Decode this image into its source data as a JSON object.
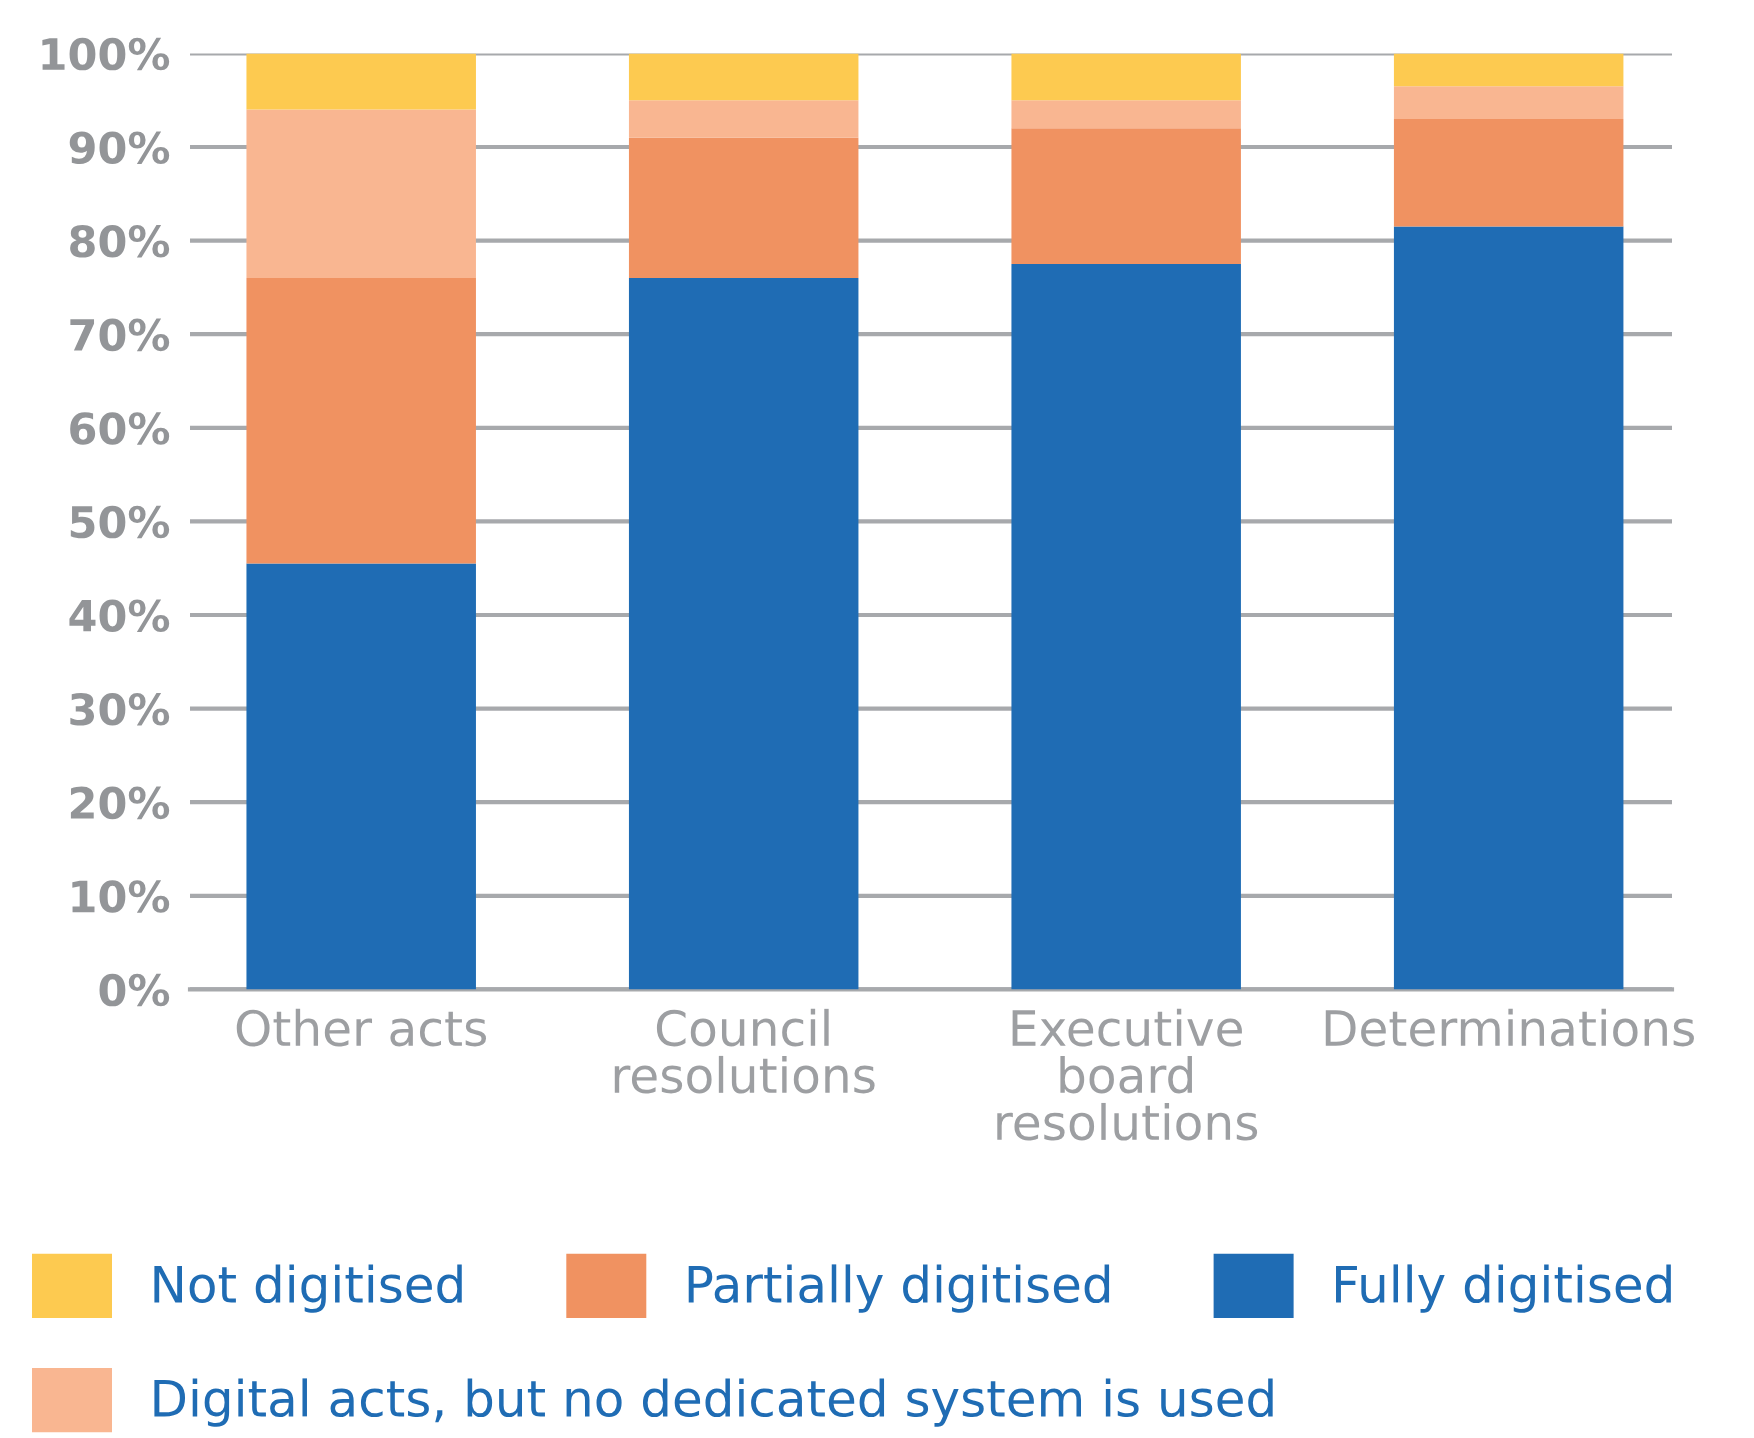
{
  "chart_data": {
    "type": "bar",
    "stacked": true,
    "categories": [
      "Other acts",
      "Council\nresolutions",
      "Executive\nboard\nresolutions",
      "Determinations"
    ],
    "series": [
      {
        "name": "Fully digitised",
        "color": "#1f6cb4",
        "values": [
          45.5,
          76,
          77.5,
          81.5
        ]
      },
      {
        "name": "Partially digitised",
        "color": "#f09261",
        "values": [
          30.5,
          15,
          14.5,
          11.5
        ]
      },
      {
        "name": "Digital acts, but no dedicated system is used",
        "color": "#f9b691",
        "values": [
          18,
          4,
          3,
          3.5
        ]
      },
      {
        "name": "Not digitised",
        "color": "#fdca50",
        "values": [
          6,
          5,
          5,
          3.5
        ]
      }
    ],
    "ylim": [
      0,
      100
    ],
    "yticks": [
      {
        "value": 0,
        "label": "0%"
      },
      {
        "value": 10,
        "label": "10%"
      },
      {
        "value": 20,
        "label": "20%"
      },
      {
        "value": 30,
        "label": "30%"
      },
      {
        "value": 40,
        "label": "40%"
      },
      {
        "value": 50,
        "label": "50%"
      },
      {
        "value": 60,
        "label": "60%"
      },
      {
        "value": 70,
        "label": "70%"
      },
      {
        "value": 80,
        "label": "80%"
      },
      {
        "value": 90,
        "label": "90%"
      },
      {
        "value": 100,
        "label": "100%"
      }
    ],
    "grid": "y",
    "legend": "bottom"
  }
}
